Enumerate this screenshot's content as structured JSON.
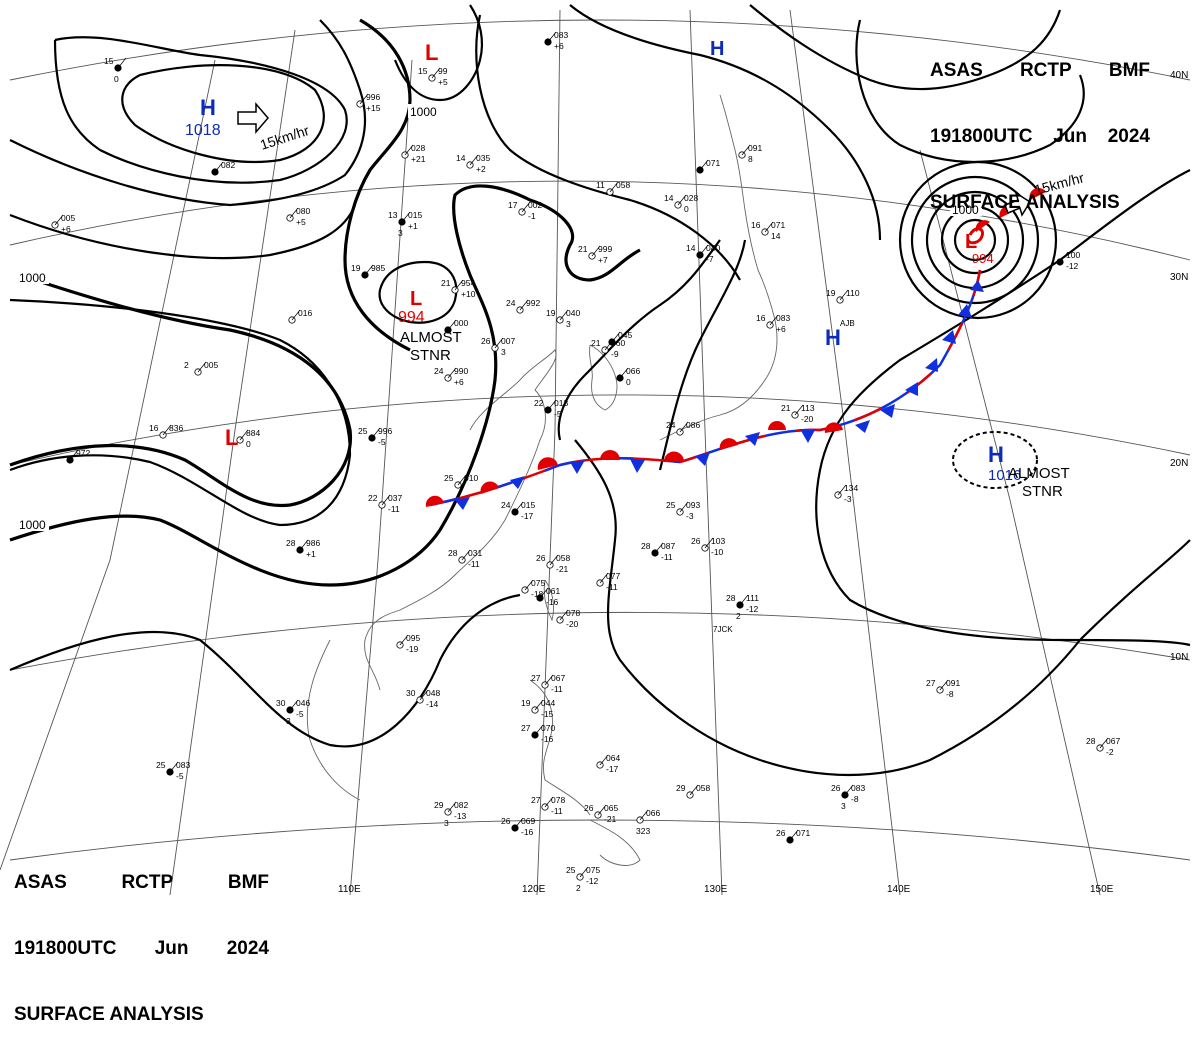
{
  "header_top": {
    "station_line": [
      "ASAS",
      "RCTP",
      "BMF"
    ],
    "time_line": [
      "191800UTC",
      "Jun",
      "2024"
    ],
    "title": "SURFACE ANALYSIS"
  },
  "header_bottom": {
    "station_line": [
      "ASAS",
      "RCTP",
      "BMF"
    ],
    "time_line": [
      "191800UTC",
      "Jun",
      "2024"
    ],
    "title": "SURFACE ANALYSIS"
  },
  "longitude_labels": [
    "110E",
    "120E",
    "130E",
    "140E",
    "150E"
  ],
  "latitude_labels": [
    "40N",
    "30N",
    "20N",
    "10N"
  ],
  "pressure_systems": [
    {
      "symbol": "H",
      "value": "1018",
      "color": "#0b2bb8",
      "note": ""
    },
    {
      "symbol": "L",
      "value": "",
      "color": "#e00000",
      "note": ""
    },
    {
      "symbol": "H",
      "value": "",
      "color": "#0b2bb8",
      "note": ""
    },
    {
      "symbol": "L",
      "value": "994",
      "color": "#e00000",
      "note": "ALMOST STNR"
    },
    {
      "symbol": "L",
      "value": "",
      "color": "#e00000",
      "note": ""
    },
    {
      "symbol": "L",
      "value": "994",
      "color": "#e00000",
      "note": ""
    },
    {
      "symbol": "H",
      "value": "",
      "color": "#0b2bb8",
      "note": ""
    },
    {
      "symbol": "H",
      "value": "1016",
      "color": "#0b2bb8",
      "note": "ALMOST STNR"
    }
  ],
  "notes": {
    "almost_stnr_1": [
      "ALMOST",
      "STNR"
    ],
    "almost_stnr_2": [
      "ALMOST",
      "STNR"
    ]
  },
  "isobar_labels": [
    "1000",
    "1000",
    "1000",
    "1000"
  ],
  "movement_labels": [
    "15km/hr",
    "15km/hr"
  ],
  "station_reports": [
    {
      "temp": "15",
      "pres": "",
      "tend": "",
      "mark": "0"
    },
    {
      "temp": "",
      "pres": "996",
      "tend": "+15",
      "mark": ""
    },
    {
      "temp": "15",
      "pres": "99",
      "tend": "+5",
      "mark": ""
    },
    {
      "temp": "",
      "pres": "083",
      "tend": "+6",
      "mark": ""
    },
    {
      "temp": "",
      "pres": "028",
      "tend": "+21",
      "mark": ""
    },
    {
      "temp": "14",
      "pres": "035",
      "tend": "+2",
      "mark": ""
    },
    {
      "temp": "",
      "pres": "082",
      "tend": "",
      "mark": ""
    },
    {
      "temp": "",
      "pres": "080",
      "tend": "+5",
      "mark": ""
    },
    {
      "temp": "",
      "pres": "005",
      "tend": "+6",
      "mark": ""
    },
    {
      "temp": "13",
      "pres": "015",
      "tend": "+1",
      "mark": "3"
    },
    {
      "temp": "17",
      "pres": "002",
      "tend": "-1",
      "mark": ""
    },
    {
      "temp": "11",
      "pres": "058",
      "tend": "",
      "mark": ""
    },
    {
      "temp": "",
      "pres": "071",
      "tend": "",
      "mark": ""
    },
    {
      "temp": "",
      "pres": "091",
      "tend": "8",
      "mark": ""
    },
    {
      "temp": "14",
      "pres": "028",
      "tend": "0",
      "mark": ""
    },
    {
      "temp": "19",
      "pres": "985",
      "tend": "",
      "mark": ""
    },
    {
      "temp": "21",
      "pres": "954",
      "tend": "+10",
      "mark": ""
    },
    {
      "temp": "21",
      "pres": "999",
      "tend": "+7",
      "mark": ""
    },
    {
      "temp": "14",
      "pres": "040",
      "tend": "-7",
      "mark": ""
    },
    {
      "temp": "16",
      "pres": "071",
      "tend": "14",
      "mark": ""
    },
    {
      "temp": "",
      "pres": "016",
      "tend": "",
      "mark": ""
    },
    {
      "temp": "",
      "pres": "000",
      "tend": "",
      "mark": ""
    },
    {
      "temp": "24",
      "pres": "992",
      "tend": "",
      "mark": ""
    },
    {
      "temp": "19",
      "pres": "040",
      "tend": "3",
      "mark": ""
    },
    {
      "temp": "",
      "pres": "045",
      "tend": "",
      "mark": ""
    },
    {
      "temp": "16",
      "pres": "083",
      "tend": "+6",
      "mark": ""
    },
    {
      "temp": "19",
      "pres": "110",
      "tend": "",
      "mark": ""
    },
    {
      "temp": "",
      "pres": "100",
      "tend": "-12",
      "mark": ""
    },
    {
      "temp": "26",
      "pres": "007",
      "tend": "3",
      "mark": ""
    },
    {
      "temp": "21",
      "pres": "060",
      "tend": "-9",
      "mark": ""
    },
    {
      "temp": "",
      "pres": "066",
      "tend": "0",
      "mark": ""
    },
    {
      "temp": "2",
      "pres": "005",
      "tend": "",
      "mark": ""
    },
    {
      "temp": "24",
      "pres": "990",
      "tend": "+6",
      "mark": ""
    },
    {
      "temp": "22",
      "pres": "013",
      "tend": "-5",
      "mark": ""
    },
    {
      "temp": "16",
      "pres": "836",
      "tend": "",
      "mark": ""
    },
    {
      "temp": "",
      "pres": "884",
      "tend": "0",
      "mark": ""
    },
    {
      "temp": "25",
      "pres": "996",
      "tend": "-5",
      "mark": ""
    },
    {
      "temp": "24",
      "pres": "086",
      "tend": "",
      "mark": ""
    },
    {
      "temp": "21",
      "pres": "113",
      "tend": "-20",
      "mark": ""
    },
    {
      "temp": "",
      "pres": "972",
      "tend": "",
      "mark": ""
    },
    {
      "temp": "25",
      "pres": "010",
      "tend": "",
      "mark": ""
    },
    {
      "temp": "22",
      "pres": "037",
      "tend": "-11",
      "mark": ""
    },
    {
      "temp": "24",
      "pres": "015",
      "tend": "-17",
      "mark": ""
    },
    {
      "temp": "25",
      "pres": "093",
      "tend": "-3",
      "mark": ""
    },
    {
      "temp": "",
      "pres": "134",
      "tend": "-3",
      "mark": ""
    },
    {
      "temp": "28",
      "pres": "986",
      "tend": "+1",
      "mark": ""
    },
    {
      "temp": "28",
      "pres": "031",
      "tend": "-11",
      "mark": ""
    },
    {
      "temp": "26",
      "pres": "058",
      "tend": "-21",
      "mark": ""
    },
    {
      "temp": "28",
      "pres": "087",
      "tend": "-11",
      "mark": ""
    },
    {
      "temp": "26",
      "pres": "103",
      "tend": "-10",
      "mark": ""
    },
    {
      "temp": "",
      "pres": "077",
      "tend": "-11",
      "mark": ""
    },
    {
      "temp": "",
      "pres": "061",
      "tend": "-16",
      "mark": ""
    },
    {
      "temp": "",
      "pres": "075",
      "tend": "-18",
      "mark": ""
    },
    {
      "temp": "",
      "pres": "078",
      "tend": "-20",
      "mark": ""
    },
    {
      "temp": "28",
      "pres": "111",
      "tend": "-12",
      "mark": "2"
    },
    {
      "temp": "",
      "pres": "095",
      "tend": "-19",
      "mark": ""
    },
    {
      "temp": "30",
      "pres": "048",
      "tend": "-14",
      "mark": ""
    },
    {
      "temp": "30",
      "pres": "046",
      "tend": "-5",
      "mark": "3"
    },
    {
      "temp": "27",
      "pres": "067",
      "tend": "-11",
      "mark": ""
    },
    {
      "temp": "19",
      "pres": "044",
      "tend": "-15",
      "mark": ""
    },
    {
      "temp": "27",
      "pres": "070",
      "tend": "-16",
      "mark": ""
    },
    {
      "temp": "27",
      "pres": "091",
      "tend": "-8",
      "mark": ""
    },
    {
      "temp": "28",
      "pres": "067",
      "tend": "-2",
      "mark": ""
    },
    {
      "temp": "25",
      "pres": "083",
      "tend": "-5",
      "mark": ""
    },
    {
      "temp": "",
      "pres": "064",
      "tend": "-17",
      "mark": ""
    },
    {
      "temp": "29",
      "pres": "058",
      "tend": "",
      "mark": ""
    },
    {
      "temp": "26",
      "pres": "083",
      "tend": "-8",
      "mark": "3"
    },
    {
      "temp": "29",
      "pres": "082",
      "tend": "-13",
      "mark": "3"
    },
    {
      "temp": "27",
      "pres": "078",
      "tend": "-11",
      "mark": ""
    },
    {
      "temp": "26",
      "pres": "069",
      "tend": "-16",
      "mark": ""
    },
    {
      "temp": "26",
      "pres": "065",
      "tend": "-21",
      "mark": ""
    },
    {
      "temp": "",
      "pres": "066",
      "tend": "",
      "mark": "323"
    },
    {
      "temp": "26",
      "pres": "071",
      "tend": "",
      "mark": ""
    },
    {
      "temp": "25",
      "pres": "075",
      "tend": "-12",
      "mark": "2"
    }
  ],
  "ship_ids": [
    "AJB",
    "7JCK"
  ]
}
